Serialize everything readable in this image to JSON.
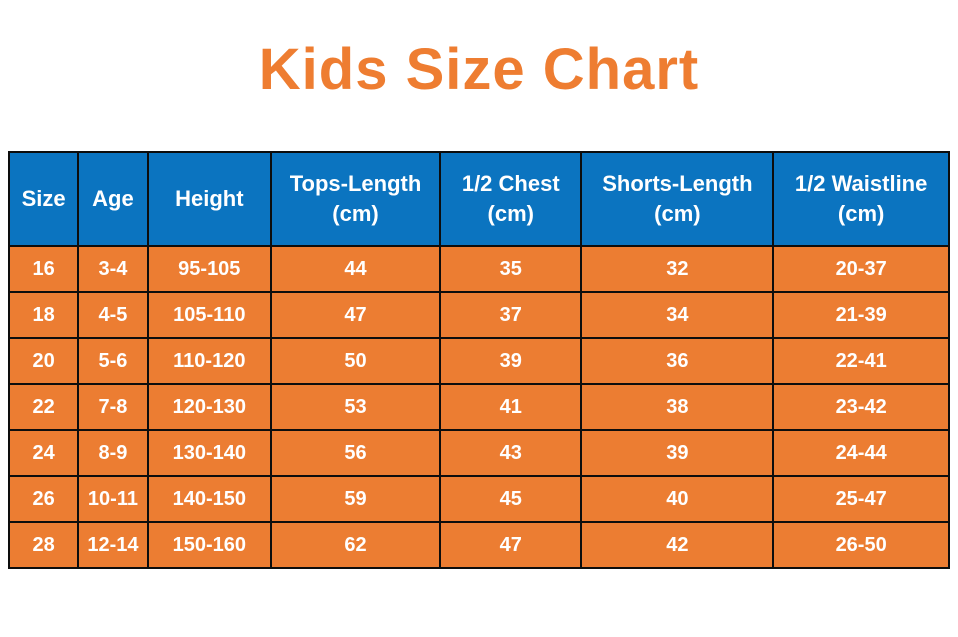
{
  "title": "Kids Size Chart",
  "colors": {
    "title_text": "#ee7d31",
    "header_bg": "#0b74c0",
    "header_text": "#ffffff",
    "row_bg": "#ec7d32",
    "row_text": "#ffffff",
    "grid_border": "#0d0d0d",
    "page_bg": "#ffffff"
  },
  "chart_data": {
    "type": "table",
    "title": "Kids Size Chart",
    "columns": [
      "Size",
      "Age",
      "Height",
      "Tops-Length\n(cm)",
      "1/2 Chest\n(cm)",
      "Shorts-Length\n(cm)",
      "1/2 Waistline\n(cm)"
    ],
    "rows": [
      [
        "16",
        "3-4",
        "95-105",
        "44",
        "35",
        "32",
        "20-37"
      ],
      [
        "18",
        "4-5",
        "105-110",
        "47",
        "37",
        "34",
        "21-39"
      ],
      [
        "20",
        "5-6",
        "110-120",
        "50",
        "39",
        "36",
        "22-41"
      ],
      [
        "22",
        "7-8",
        "120-130",
        "53",
        "41",
        "38",
        "23-42"
      ],
      [
        "24",
        "8-9",
        "130-140",
        "56",
        "43",
        "39",
        "24-44"
      ],
      [
        "26",
        "10-11",
        "140-150",
        "59",
        "45",
        "40",
        "25-47"
      ],
      [
        "28",
        "12-14",
        "150-160",
        "62",
        "47",
        "42",
        "26-50"
      ]
    ]
  }
}
